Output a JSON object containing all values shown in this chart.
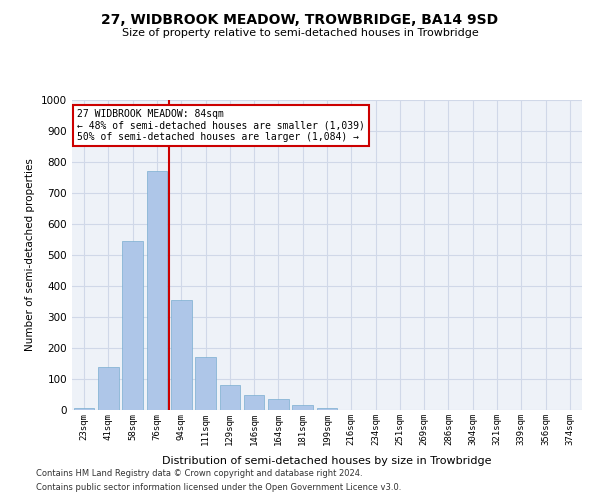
{
  "title": "27, WIDBROOK MEADOW, TROWBRIDGE, BA14 9SD",
  "subtitle": "Size of property relative to semi-detached houses in Trowbridge",
  "xlabel": "Distribution of semi-detached houses by size in Trowbridge",
  "ylabel": "Number of semi-detached properties",
  "footer_line1": "Contains HM Land Registry data © Crown copyright and database right 2024.",
  "footer_line2": "Contains public sector information licensed under the Open Government Licence v3.0.",
  "categories": [
    "23sqm",
    "41sqm",
    "58sqm",
    "76sqm",
    "94sqm",
    "111sqm",
    "129sqm",
    "146sqm",
    "164sqm",
    "181sqm",
    "199sqm",
    "216sqm",
    "234sqm",
    "251sqm",
    "269sqm",
    "286sqm",
    "304sqm",
    "321sqm",
    "339sqm",
    "356sqm",
    "374sqm"
  ],
  "values": [
    8,
    138,
    545,
    770,
    355,
    170,
    80,
    50,
    35,
    15,
    8,
    0,
    0,
    0,
    0,
    0,
    0,
    0,
    0,
    0,
    0
  ],
  "bar_color": "#aec6e8",
  "bar_edgecolor": "#7aaed0",
  "grid_color": "#d0d8e8",
  "background_color": "#eef2f8",
  "annotation_box_text": "27 WIDBROOK MEADOW: 84sqm\n← 48% of semi-detached houses are smaller (1,039)\n50% of semi-detached houses are larger (1,084) →",
  "property_line_color": "#cc0000",
  "annotation_box_color": "#cc0000",
  "ylim": [
    0,
    1000
  ],
  "yticks": [
    0,
    100,
    200,
    300,
    400,
    500,
    600,
    700,
    800,
    900,
    1000
  ]
}
